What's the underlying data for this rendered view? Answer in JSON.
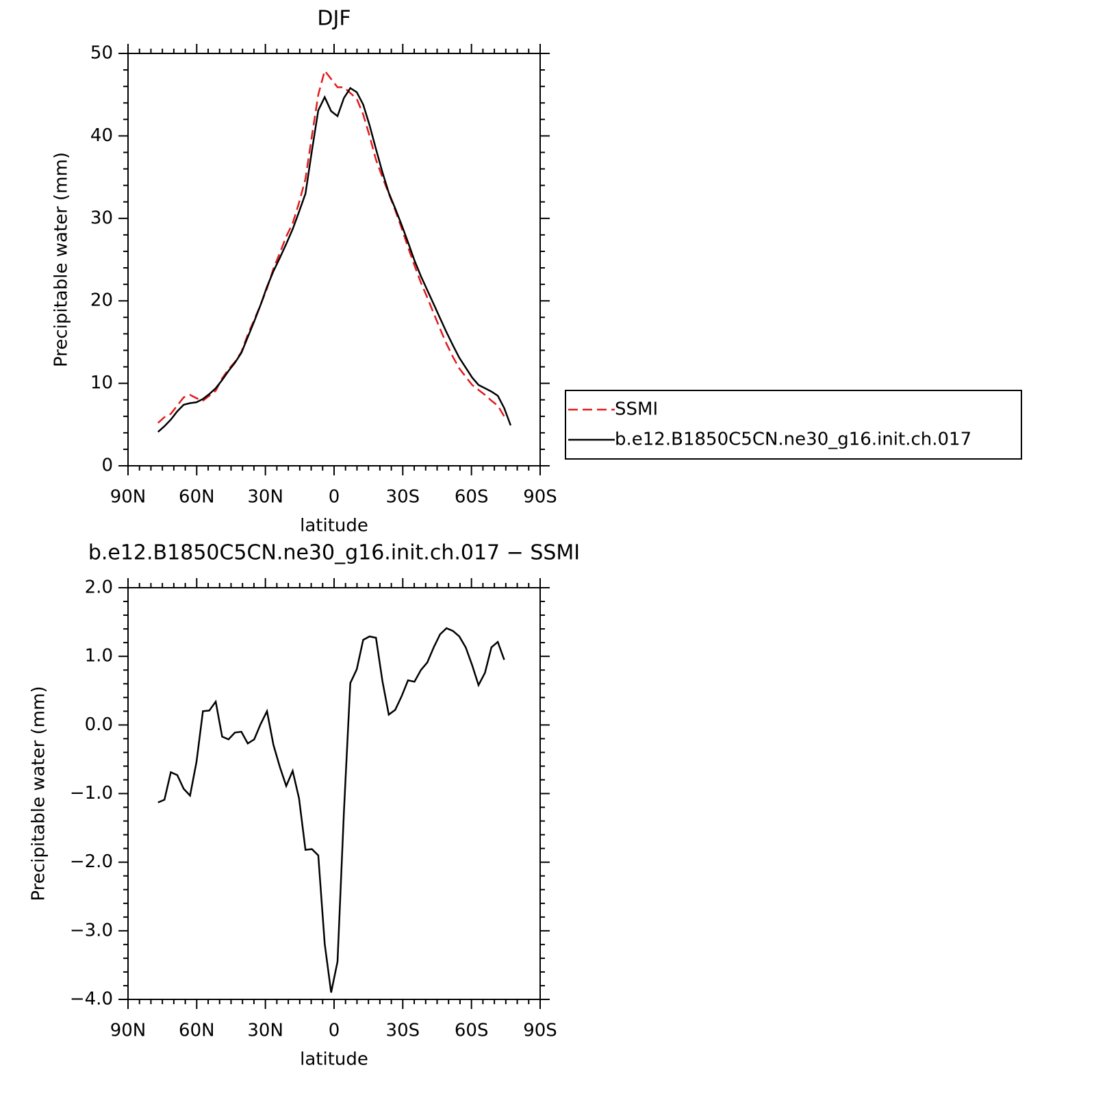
{
  "chart_data": [
    {
      "type": "line",
      "title": "DJF",
      "xlabel": "latitude",
      "ylabel": "Precipitable water (mm)",
      "x": [
        76.9,
        74.1,
        71.3,
        68.5,
        65.7,
        62.9,
        60.1,
        57.3,
        54.5,
        51.7,
        48.9,
        46.1,
        43.3,
        40.5,
        37.7,
        34.9,
        32.1,
        29.3,
        26.5,
        23.7,
        20.9,
        18.1,
        15.3,
        12.5,
        9.7,
        6.9,
        4.1,
        1.3,
        -1.5,
        -4.3,
        -7.1,
        -9.9,
        -12.7,
        -15.5,
        -18.3,
        -21.1,
        -23.9,
        -26.7,
        -29.5,
        -32.3,
        -35.1,
        -37.9,
        -40.7,
        -43.5,
        -46.3,
        -49.1,
        -51.9,
        -54.7,
        -57.5,
        -60.3,
        -63.1,
        -65.9,
        -68.7,
        -71.5,
        -74.3,
        -77.1
      ],
      "series": [
        {
          "name": "SSMI",
          "color": "#e31a1c",
          "dash": true,
          "values": [
            5.2,
            5.9,
            6.3,
            7.3,
            8.3,
            8.6,
            8.2,
            7.9,
            8.5,
            9.1,
            10.6,
            11.7,
            12.6,
            13.8,
            15.9,
            17.7,
            19.5,
            21.5,
            23.9,
            25.8,
            27.8,
            29.4,
            31.9,
            34.8,
            40.0,
            45.0,
            47.9,
            46.9,
            45.9,
            45.9,
            45.2,
            44.5,
            42.6,
            40.0,
            37.1,
            35.0,
            33.0,
            31.0,
            28.8,
            26.5,
            24.3,
            22.2,
            20.4,
            18.5,
            16.6,
            14.8,
            13.2,
            11.8,
            10.8,
            9.8,
            9.2,
            8.6,
            7.9,
            7.3,
            6.0,
            null
          ]
        },
        {
          "name": "b.e12.B1850C5CN.ne30_g16.init.ch.017",
          "color": "#000000",
          "dash": false,
          "values": [
            4.1,
            4.8,
            5.6,
            6.6,
            7.4,
            7.6,
            7.7,
            8.1,
            8.7,
            9.4,
            10.4,
            11.5,
            12.5,
            13.7,
            15.6,
            17.5,
            19.5,
            21.7,
            23.6,
            25.2,
            26.9,
            28.7,
            30.8,
            33.0,
            38.2,
            43.1,
            44.7,
            43.0,
            42.4,
            44.6,
            45.8,
            45.3,
            43.8,
            41.3,
            38.4,
            35.6,
            33.1,
            31.2,
            29.2,
            27.1,
            24.9,
            23.0,
            21.3,
            19.6,
            17.9,
            16.2,
            14.6,
            13.1,
            11.9,
            10.7,
            9.8,
            9.4,
            9.0,
            8.5,
            7.0,
            4.9
          ]
        }
      ],
      "xlim": [
        90,
        -90
      ],
      "xticks": [
        {
          "value": 90,
          "label": "90N"
        },
        {
          "value": 60,
          "label": "60N"
        },
        {
          "value": 30,
          "label": "30N"
        },
        0,
        {
          "value": -30,
          "label": "30S"
        },
        {
          "value": -60,
          "label": "60S"
        },
        {
          "value": -90,
          "label": "90S"
        }
      ],
      "ylim": [
        0,
        50
      ],
      "yticks": [
        0,
        10,
        20,
        30,
        40,
        50
      ],
      "legend": "right"
    },
    {
      "type": "line",
      "title": "b.e12.B1850C5CN.ne30_g16.init.ch.017 − SSMI",
      "xlabel": "latitude",
      "ylabel": "Precipitable water (mm)",
      "x": [
        76.9,
        74.1,
        71.3,
        68.5,
        65.7,
        62.9,
        60.1,
        57.3,
        54.5,
        51.7,
        48.9,
        46.1,
        43.3,
        40.5,
        37.7,
        34.9,
        32.1,
        29.3,
        26.5,
        23.7,
        20.9,
        18.1,
        15.3,
        12.5,
        9.7,
        6.9,
        4.1,
        1.3,
        -1.5,
        -4.3,
        -7.1,
        -9.9,
        -12.7,
        -15.5,
        -18.3,
        -21.1,
        -23.9,
        -26.7,
        -29.5,
        -32.3,
        -35.1,
        -37.9,
        -40.7,
        -43.5,
        -46.3,
        -49.1,
        -51.9,
        -54.7,
        -57.5,
        -60.3,
        -63.1,
        -65.9,
        -68.7,
        -71.5,
        -74.3
      ],
      "series": [
        {
          "color": "#000000",
          "dash": false,
          "values": [
            -1.13,
            -1.09,
            -0.69,
            -0.73,
            -0.93,
            -1.03,
            -0.54,
            0.2,
            0.21,
            0.34,
            -0.17,
            -0.21,
            -0.11,
            -0.1,
            -0.27,
            -0.21,
            0.01,
            0.2,
            -0.29,
            -0.61,
            -0.89,
            -0.67,
            -1.07,
            -1.82,
            -1.81,
            -1.9,
            -3.19,
            -3.9,
            -3.45,
            -1.26,
            0.61,
            0.81,
            1.24,
            1.29,
            1.27,
            0.64,
            0.15,
            0.22,
            0.42,
            0.65,
            0.63,
            0.8,
            0.91,
            1.13,
            1.32,
            1.41,
            1.37,
            1.29,
            1.13,
            0.87,
            0.58,
            0.76,
            1.13,
            1.21,
            0.95
          ]
        }
      ],
      "xlim": [
        90,
        -90
      ],
      "xticks": [
        {
          "value": 90,
          "label": "90N"
        },
        {
          "value": 60,
          "label": "60N"
        },
        {
          "value": 30,
          "label": "30N"
        },
        0,
        {
          "value": -30,
          "label": "30S"
        },
        {
          "value": -60,
          "label": "60S"
        },
        {
          "value": -90,
          "label": "90S"
        }
      ],
      "ylim": [
        -4,
        2
      ],
      "yticks": [
        {
          "value": -4,
          "label": "−4.0"
        },
        {
          "value": -3,
          "label": "−3.0"
        },
        {
          "value": -2,
          "label": "−2.0"
        },
        {
          "value": -1,
          "label": "−1.0"
        },
        {
          "value": 0,
          "label": "0.0"
        },
        {
          "value": 1,
          "label": "1.0"
        },
        {
          "value": 2,
          "label": "2.0"
        }
      ]
    }
  ]
}
